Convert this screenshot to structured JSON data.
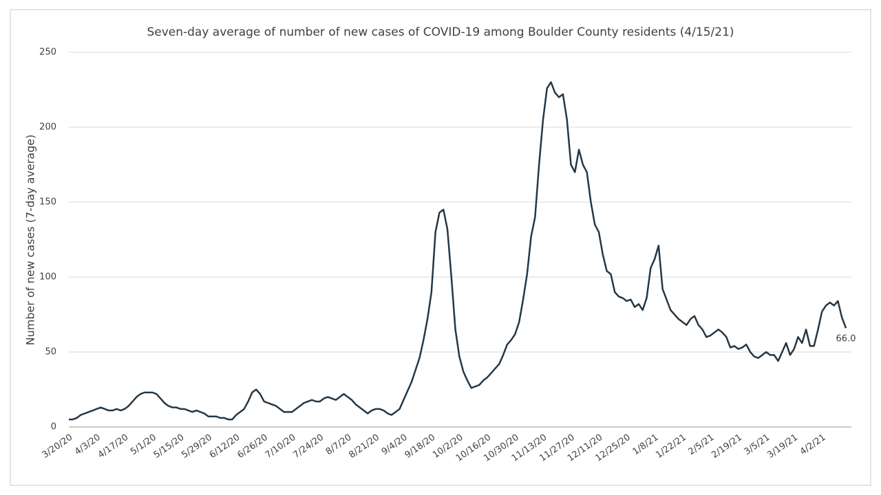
{
  "chart_data": {
    "type": "line",
    "title": "Seven-day average of number of new cases of COVID-19 among Boulder County residents (4/15/21)",
    "y_label": "Number of new cases (7-day average)",
    "categories": [
      "3/20/20",
      null,
      null,
      null,
      null,
      null,
      null,
      "4/3/20",
      null,
      null,
      null,
      null,
      null,
      null,
      "4/17/20",
      null,
      null,
      null,
      null,
      null,
      null,
      "5/1/20",
      null,
      null,
      null,
      null,
      null,
      null,
      "5/15/20",
      null,
      null,
      null,
      null,
      null,
      null,
      "5/29/20",
      null,
      null,
      null,
      null,
      null,
      null,
      "6/12/20",
      null,
      null,
      null,
      null,
      null,
      null,
      "6/26/20",
      null,
      null,
      null,
      null,
      null,
      null,
      "7/10/20",
      null,
      null,
      null,
      null,
      null,
      null,
      "7/24/20",
      null,
      null,
      null,
      null,
      null,
      null,
      "8/7/20",
      null,
      null,
      null,
      null,
      null,
      null,
      "8/21/20",
      null,
      null,
      null,
      null,
      null,
      null,
      "9/4/20",
      null,
      null,
      null,
      null,
      null,
      null,
      "9/18/20",
      null,
      null,
      null,
      null,
      null,
      null,
      "10/2/20",
      null,
      null,
      null,
      null,
      null,
      null,
      "10/16/20",
      null,
      null,
      null,
      null,
      null,
      null,
      "10/30/20",
      null,
      null,
      null,
      null,
      null,
      null,
      "11/13/20",
      null,
      null,
      null,
      null,
      null,
      null,
      "11/27/20",
      null,
      null,
      null,
      null,
      null,
      null,
      "12/11/20",
      null,
      null,
      null,
      null,
      null,
      null,
      "12/25/20",
      null,
      null,
      null,
      null,
      null,
      null,
      "1/8/21",
      null,
      null,
      null,
      null,
      null,
      null,
      "1/22/21",
      null,
      null,
      null,
      null,
      null,
      null,
      "2/5/21",
      null,
      null,
      null,
      null,
      null,
      null,
      "2/19/21",
      null,
      null,
      null,
      null,
      null,
      null,
      "3/5/21",
      null,
      null,
      null,
      null,
      null,
      null,
      "3/19/21",
      null,
      null,
      null,
      null,
      null,
      null,
      "4/2/21",
      null,
      null,
      null,
      null,
      null,
      null
    ],
    "series": [
      {
        "name": "Seven-day average",
        "color": "#243746",
        "values": [
          5,
          5,
          6,
          8,
          9,
          10,
          11,
          12,
          13,
          12,
          11,
          11,
          12,
          11,
          12,
          14,
          17,
          20,
          22,
          23,
          23,
          23,
          22,
          19,
          16,
          14,
          13,
          13,
          12,
          12,
          11,
          10,
          11,
          10,
          9,
          7,
          7,
          7,
          6,
          6,
          5,
          5,
          8,
          10,
          12,
          17,
          23,
          25,
          22,
          17,
          16,
          15,
          14,
          12,
          10,
          10,
          10,
          12,
          14,
          16,
          17,
          18,
          17,
          17,
          19,
          20,
          19,
          18,
          20,
          22,
          20,
          18,
          15,
          13,
          11,
          9,
          11,
          12,
          12,
          11,
          9,
          8,
          10,
          12,
          18,
          24,
          30,
          38,
          46,
          58,
          72,
          90,
          130,
          143,
          145,
          132,
          100,
          65,
          47,
          37,
          31,
          26,
          27,
          28,
          31,
          33,
          36,
          39,
          42,
          48,
          55,
          58,
          62,
          70,
          85,
          102,
          127,
          140,
          175,
          205,
          226,
          230,
          223,
          220,
          222,
          205,
          175,
          170,
          185,
          175,
          170,
          150,
          135,
          130,
          115,
          104,
          102,
          90,
          87,
          86,
          84,
          85,
          80,
          82,
          78,
          86,
          106,
          112,
          121,
          92,
          85,
          78,
          75,
          72,
          70,
          68,
          72,
          74,
          68,
          65,
          60,
          61,
          63,
          65,
          63,
          60,
          53,
          54,
          52,
          53,
          55,
          50,
          47,
          46,
          48,
          50,
          48,
          48,
          44,
          50,
          56,
          48,
          52,
          60,
          56,
          65,
          54,
          54,
          65,
          77,
          81,
          83,
          81,
          84,
          73,
          66
        ],
        "value_labels": [
          null,
          null,
          null,
          null,
          null,
          null,
          null,
          null,
          null,
          null,
          null,
          null,
          null,
          null,
          null,
          null,
          null,
          null,
          null,
          null,
          null,
          null,
          null,
          null,
          null,
          null,
          null,
          null,
          null,
          null,
          null,
          null,
          null,
          null,
          null,
          null,
          null,
          null,
          null,
          null,
          null,
          null,
          null,
          null,
          null,
          null,
          null,
          null,
          null,
          null,
          null,
          null,
          null,
          null,
          null,
          null,
          null,
          null,
          null,
          null,
          null,
          null,
          null,
          null,
          null,
          null,
          null,
          null,
          null,
          null,
          null,
          null,
          null,
          null,
          null,
          null,
          null,
          null,
          null,
          null,
          null,
          null,
          null,
          null,
          null,
          null,
          null,
          null,
          null,
          null,
          null,
          null,
          null,
          null,
          null,
          null,
          null,
          null,
          null,
          null,
          null,
          null,
          null,
          null,
          null,
          null,
          null,
          null,
          null,
          null,
          null,
          null,
          null,
          null,
          null,
          null,
          null,
          null,
          null,
          null,
          null,
          null,
          null,
          null,
          null,
          null,
          null,
          null,
          null,
          null,
          null,
          null,
          null,
          null,
          null,
          null,
          null,
          null,
          null,
          null,
          null,
          null,
          null,
          null,
          null,
          null,
          null,
          null,
          null,
          null,
          null,
          null,
          null,
          null,
          null,
          null,
          null,
          null,
          null,
          null,
          null,
          null,
          null,
          null,
          null,
          null,
          null,
          null,
          null,
          null,
          null,
          null,
          null,
          null,
          null,
          null,
          null,
          null,
          null,
          null,
          null,
          null,
          null,
          null,
          null,
          null,
          null,
          null,
          null,
          null,
          null,
          null,
          null,
          null,
          null,
          "66.0"
        ]
      }
    ],
    "ylim": [
      0,
      250
    ],
    "yticks": [
      0,
      50,
      100,
      150,
      200,
      250
    ],
    "grid": true
  }
}
